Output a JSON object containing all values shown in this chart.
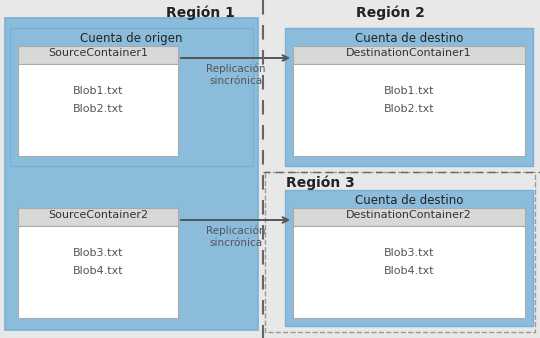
{
  "fig_width": 5.4,
  "fig_height": 3.38,
  "dpi": 100,
  "bg_color": "#e8e8e8",
  "region1_bg": "#8cbcdc",
  "account_origen_bg": "#8cbcdc",
  "account_destino_bg": "#8cbcdc",
  "container_header_bg": "#d8d8d8",
  "container_body_bg": "#ffffff",
  "dest_container_header_bg": "#d8d8d8",
  "dest_container_body_bg": "#ffffff",
  "region3_bg": "#e8e8e8",
  "region1_label": "Región 1",
  "region2_label": "Región 2",
  "region3_label": "Región 3",
  "origin_account_label": "Cuenta de origen",
  "dest_account_label": "Cuenta de destino",
  "source_container1": "SourceContainer1",
  "source_container2": "SourceContainer2",
  "dest_container1": "DestinationContainer1",
  "dest_container2": "DestinationContainer2",
  "blobs1": [
    "Blob1.txt",
    "Blob2.txt"
  ],
  "blobs2": [
    "Blob3.txt",
    "Blob4.txt"
  ],
  "blobs3": [
    "Blob1.txt",
    "Blob2.txt"
  ],
  "blobs4": [
    "Blob3.txt",
    "Blob4.txt"
  ],
  "arrow_label": "Replicación\nsincrónica",
  "container_border": "#aaaaaa",
  "account_border": "#7ab0d4",
  "region3_border": "#999999",
  "arrow_color": "#555555",
  "text_dark": "#333333",
  "text_mid": "#555555",
  "divider_color": "#666666"
}
